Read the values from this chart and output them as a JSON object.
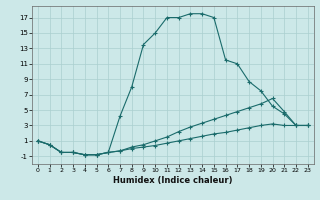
{
  "xlabel": "Humidex (Indice chaleur)",
  "background_color": "#cce8e8",
  "grid_color": "#aacfcf",
  "line_color": "#1a6b6b",
  "xlim": [
    -0.5,
    23.5
  ],
  "ylim": [
    -2,
    18.5
  ],
  "xticks": [
    0,
    1,
    2,
    3,
    4,
    5,
    6,
    7,
    8,
    9,
    10,
    11,
    12,
    13,
    14,
    15,
    16,
    17,
    18,
    19,
    20,
    21,
    22,
    23
  ],
  "yticks": [
    -1,
    1,
    3,
    5,
    7,
    9,
    11,
    13,
    15,
    17
  ],
  "series": [
    {
      "x": [
        0,
        1,
        2,
        3,
        4,
        5,
        6,
        7,
        8,
        9,
        10,
        11,
        12,
        13,
        14,
        15,
        16,
        17,
        18,
        19,
        20,
        21,
        22,
        23
      ],
      "y": [
        1,
        0.5,
        -0.5,
        -0.5,
        -0.8,
        -0.8,
        -0.5,
        4.2,
        8.0,
        13.5,
        15.0,
        17.0,
        17.0,
        17.5,
        17.5,
        17.0,
        11.5,
        11.0,
        8.7,
        7.5,
        5.5,
        4.5,
        3.0,
        3.0
      ]
    },
    {
      "x": [
        0,
        1,
        2,
        3,
        4,
        5,
        6,
        7,
        8,
        9,
        10,
        11,
        12,
        13,
        14,
        15,
        16,
        17,
        18,
        19,
        20,
        21,
        22,
        23
      ],
      "y": [
        1,
        0.5,
        -0.5,
        -0.5,
        -0.8,
        -0.8,
        -0.5,
        -0.3,
        0.2,
        0.5,
        1.0,
        1.5,
        2.2,
        2.8,
        3.3,
        3.8,
        4.3,
        4.8,
        5.3,
        5.8,
        6.5,
        4.8,
        3.0,
        3.0
      ]
    },
    {
      "x": [
        0,
        1,
        2,
        3,
        4,
        5,
        6,
        7,
        8,
        9,
        10,
        11,
        12,
        13,
        14,
        15,
        16,
        17,
        18,
        19,
        20,
        21,
        22,
        23
      ],
      "y": [
        1,
        0.5,
        -0.5,
        -0.5,
        -0.8,
        -0.8,
        -0.5,
        -0.3,
        0.0,
        0.2,
        0.4,
        0.7,
        1.0,
        1.3,
        1.6,
        1.9,
        2.1,
        2.4,
        2.7,
        3.0,
        3.2,
        3.0,
        3.0,
        3.0
      ]
    }
  ]
}
